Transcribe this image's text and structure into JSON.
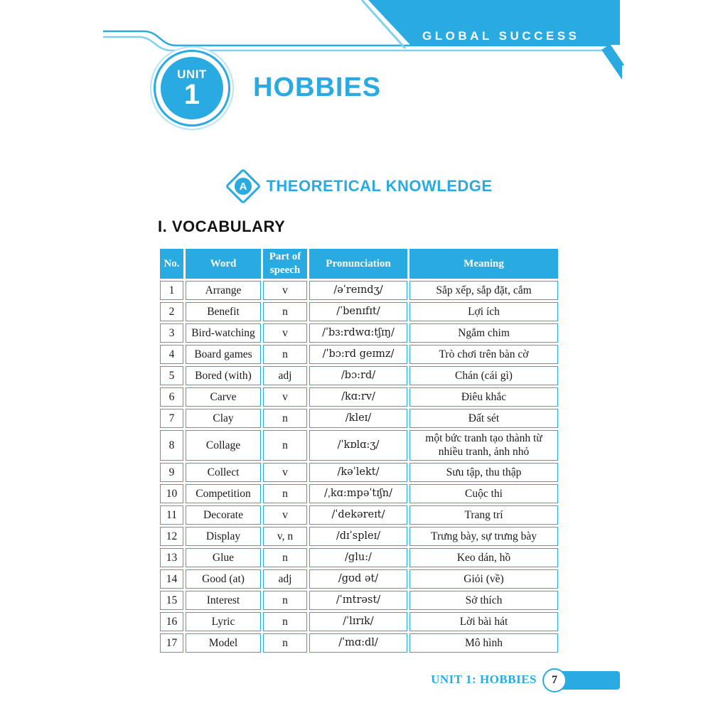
{
  "colors": {
    "accent": "#29ABE2",
    "accent_light": "#7FD1F0",
    "accent_pale": "#B5E6F8",
    "text": "#1a1a1a",
    "white": "#ffffff"
  },
  "header": {
    "brand": "GLOBAL SUCCESS",
    "unit_label": "UNIT",
    "unit_number": "1",
    "title": "HOBBIES"
  },
  "section": {
    "badge_letter": "A",
    "title": "THEORETICAL KNOWLEDGE"
  },
  "vocabulary": {
    "heading": "I. VOCABULARY",
    "table": {
      "headers": [
        "No.",
        "Word",
        "Part of speech",
        "Pronunciation",
        "Meaning"
      ],
      "rows": [
        {
          "no": "1",
          "word": "Arrange",
          "pos": "v",
          "pron": "/əˈreɪndʒ/",
          "meaning": "Sắp xếp, sắp đặt, cắm"
        },
        {
          "no": "2",
          "word": "Benefit",
          "pos": "n",
          "pron": "/ˈbenɪfɪt/",
          "meaning": "Lợi ích"
        },
        {
          "no": "3",
          "word": "Bird-watching",
          "pos": "v",
          "pron": "/ˈbɜ:rdwɑ:tʃɪŋ/",
          "meaning": "Ngắm chim"
        },
        {
          "no": "4",
          "word": "Board games",
          "pos": "n",
          "pron": "/ˈbɔ:rd geɪmz/",
          "meaning": "Trò chơi trên bàn cờ"
        },
        {
          "no": "5",
          "word": "Bored (with)",
          "pos": "adj",
          "pron": "/bɔ:rd/",
          "meaning": "Chán (cái gì)"
        },
        {
          "no": "6",
          "word": "Carve",
          "pos": "v",
          "pron": "/kɑ:rv/",
          "meaning": "Điêu khắc"
        },
        {
          "no": "7",
          "word": "Clay",
          "pos": "n",
          "pron": "/kleɪ/",
          "meaning": "Đất sét"
        },
        {
          "no": "8",
          "word": "Collage",
          "pos": "n",
          "pron": "/ˈkɒlɑ:ʒ/",
          "meaning": "một bức tranh tạo thành từ nhiều tranh, ảnh nhỏ"
        },
        {
          "no": "9",
          "word": "Collect",
          "pos": "v",
          "pron": "/kəˈlekt/",
          "meaning": "Sưu tập, thu thập"
        },
        {
          "no": "10",
          "word": "Competition",
          "pos": "n",
          "pron": "/ˌkɑ:mpəˈtɪʃn/",
          "meaning": "Cuộc thi"
        },
        {
          "no": "11",
          "word": "Decorate",
          "pos": "v",
          "pron": "/ˈdekəreɪt/",
          "meaning": "Trang trí"
        },
        {
          "no": "12",
          "word": "Display",
          "pos": "v, n",
          "pron": "/dɪˈspleɪ/",
          "meaning": "Trưng bày, sự trưng bày"
        },
        {
          "no": "13",
          "word": "Glue",
          "pos": "n",
          "pron": "/glu:/",
          "meaning": "Keo dán, hồ"
        },
        {
          "no": "14",
          "word": "Good (at)",
          "pos": "adj",
          "pron": "/gʊd ət/",
          "meaning": "Giỏi (về)"
        },
        {
          "no": "15",
          "word": "Interest",
          "pos": "n",
          "pron": "/ˈɪntrəst/",
          "meaning": "Sở thích"
        },
        {
          "no": "16",
          "word": "Lyric",
          "pos": "n",
          "pron": "/ˈlɪrɪk/",
          "meaning": "Lời bài hát"
        },
        {
          "no": "17",
          "word": "Model",
          "pos": "n",
          "pron": "/ˈmɑ:dl/",
          "meaning": "Mô hình"
        }
      ]
    }
  },
  "footer": {
    "label": "UNIT 1: HOBBIES",
    "page_number": "7"
  }
}
